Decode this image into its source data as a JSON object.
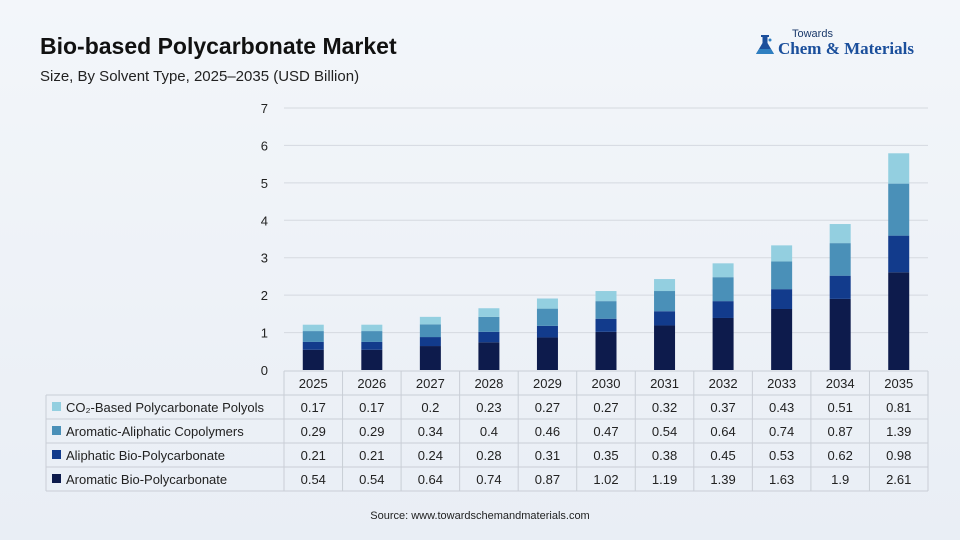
{
  "header": {
    "title": "Bio-based Polycarbonate Market",
    "subtitle": "Size, By Solvent Type, 2025–2035 (USD Billion)"
  },
  "logo": {
    "top_text": "Towards",
    "main_text": "Chem & Materials"
  },
  "source": "Source: www.towardschemandmaterials.com",
  "chart_data": {
    "type": "bar",
    "stacked": true,
    "categories": [
      "2025",
      "2026",
      "2027",
      "2028",
      "2029",
      "2030",
      "2031",
      "2032",
      "2033",
      "2034",
      "2035"
    ],
    "ylim": [
      0,
      7
    ],
    "yticks": [
      "0",
      "1",
      "2",
      "3",
      "4",
      "5",
      "6",
      "7"
    ],
    "grid": true,
    "series": [
      {
        "name": "Aromatic Bio-Polycarbonate",
        "color": "#0d1b4c",
        "values": [
          0.54,
          0.54,
          0.64,
          0.74,
          0.87,
          1.02,
          1.19,
          1.39,
          1.63,
          1.9,
          2.61
        ]
      },
      {
        "name": "Aliphatic Bio-Polycarbonate",
        "color": "#123b8c",
        "values": [
          0.21,
          0.21,
          0.24,
          0.28,
          0.31,
          0.35,
          0.38,
          0.45,
          0.53,
          0.62,
          0.98
        ]
      },
      {
        "name": "Aromatic-Aliphatic Copolymers",
        "color": "#4a90b8",
        "values": [
          0.29,
          0.29,
          0.34,
          0.4,
          0.46,
          0.47,
          0.54,
          0.64,
          0.74,
          0.87,
          1.39
        ]
      },
      {
        "name": "CO₂-Based Polycarbonate Polyols",
        "color": "#93cfe0",
        "values": [
          0.17,
          0.17,
          0.2,
          0.23,
          0.27,
          0.27,
          0.32,
          0.37,
          0.43,
          0.51,
          0.81
        ]
      }
    ],
    "table_row_order": [
      3,
      2,
      1,
      0
    ]
  }
}
